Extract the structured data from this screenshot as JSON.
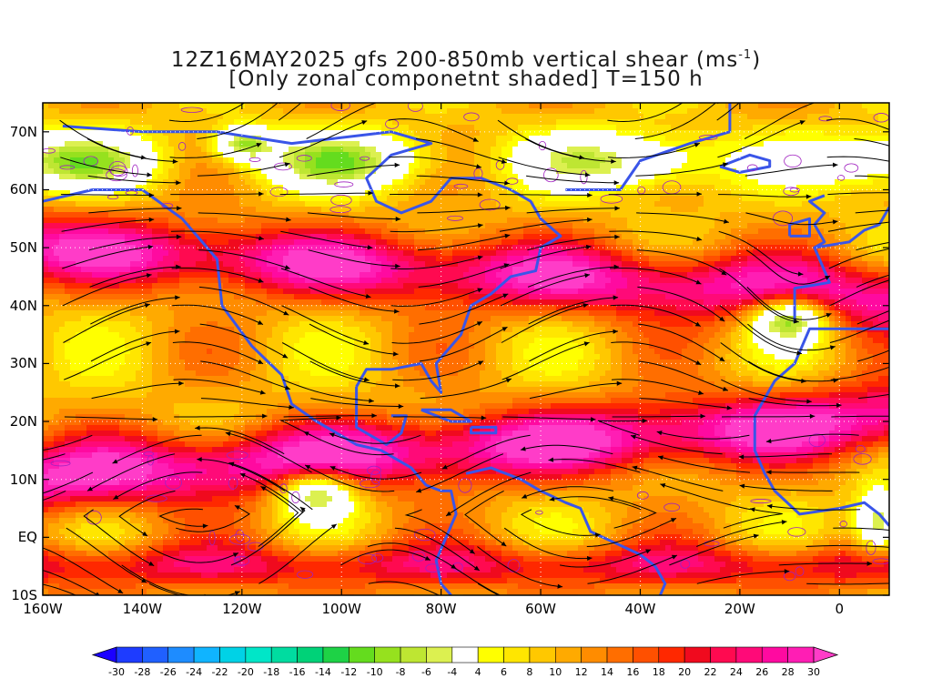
{
  "title": {
    "line1_prefix": "12Z16MAY2025 gfs 200-850mb vertical shear (ms",
    "line1_sup": "-1",
    "line1_suffix": ")",
    "line2": "[Only zonal componetnt shaded] T=150 h"
  },
  "map": {
    "lon_range": [
      -160,
      10
    ],
    "lat_range": [
      -10,
      75
    ],
    "lat_ticks": [
      {
        "value": 70,
        "label": "70N"
      },
      {
        "value": 60,
        "label": "60N"
      },
      {
        "value": 50,
        "label": "50N"
      },
      {
        "value": 40,
        "label": "40N"
      },
      {
        "value": 30,
        "label": "30N"
      },
      {
        "value": 20,
        "label": "20N"
      },
      {
        "value": 10,
        "label": "10N"
      },
      {
        "value": 0,
        "label": "EQ"
      },
      {
        "value": -10,
        "label": "10S"
      }
    ],
    "lon_ticks": [
      {
        "value": -160,
        "label": "160W"
      },
      {
        "value": -140,
        "label": "140W"
      },
      {
        "value": -120,
        "label": "120W"
      },
      {
        "value": -100,
        "label": "100W"
      },
      {
        "value": -80,
        "label": "80W"
      },
      {
        "value": -60,
        "label": "60W"
      },
      {
        "value": -40,
        "label": "40W"
      },
      {
        "value": -20,
        "label": "20W"
      },
      {
        "value": 0,
        "label": "0"
      }
    ],
    "coastline_color": "#3a55e8",
    "contour_color": "#a020c0",
    "streamline_color": "#000000"
  },
  "colorbar": {
    "levels": [
      "-30",
      "-28",
      "-26",
      "-24",
      "-22",
      "-20",
      "-18",
      "-16",
      "-14",
      "-12",
      "-10",
      "-8",
      "-6",
      "-4",
      "4",
      "6",
      "8",
      "10",
      "12",
      "14",
      "16",
      "18",
      "20",
      "22",
      "24",
      "26",
      "28",
      "30"
    ],
    "colors": [
      "#1b00ff",
      "#1e3cff",
      "#2060ff",
      "#1e8cff",
      "#10b4ff",
      "#00d2e6",
      "#00e6c8",
      "#00dca0",
      "#00d278",
      "#1ed246",
      "#64dc1e",
      "#96e11e",
      "#bee632",
      "#dcf050",
      "#ffffff",
      "#ffff00",
      "#ffe600",
      "#ffc800",
      "#ffaa00",
      "#ff8c00",
      "#ff6e00",
      "#ff5000",
      "#ff2800",
      "#f00a1e",
      "#ff0a50",
      "#ff0a78",
      "#ff0aa0",
      "#ff1eb4",
      "#ff3cc8"
    ]
  }
}
